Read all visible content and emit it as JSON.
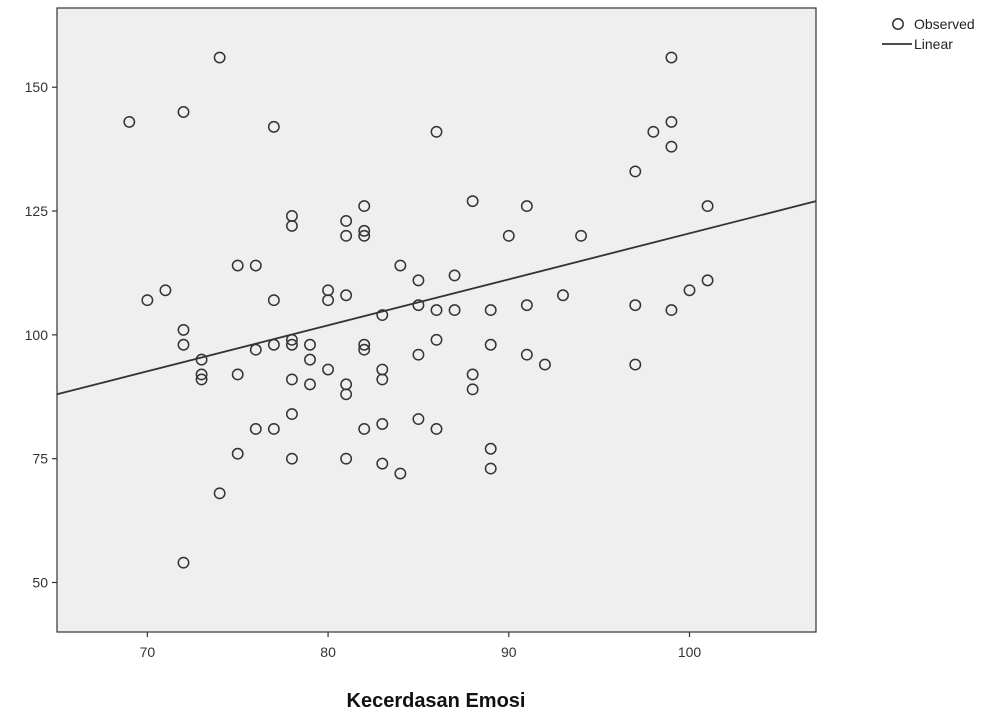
{
  "chart_data": {
    "type": "scatter",
    "xlabel": "Kecerdasan Emosi",
    "ylabel": "",
    "xlim": [
      65,
      107
    ],
    "ylim": [
      40,
      166
    ],
    "x_ticks": [
      70,
      80,
      90,
      100
    ],
    "y_ticks": [
      50,
      75,
      100,
      125,
      150
    ],
    "grid": false,
    "legend_position": "top-right",
    "legend": [
      {
        "label": "Observed",
        "marker": "circle"
      },
      {
        "label": "Linear",
        "marker": "line"
      }
    ],
    "colors": {
      "background": "#ffffff",
      "plot_area": "#efefef",
      "marker": "#333333",
      "line": "#333333"
    },
    "series": [
      {
        "name": "Observed",
        "points": [
          [
            69,
            143
          ],
          [
            70,
            107
          ],
          [
            71,
            109
          ],
          [
            72,
            145
          ],
          [
            72,
            101
          ],
          [
            72,
            98
          ],
          [
            72,
            54
          ],
          [
            73,
            95
          ],
          [
            73,
            92
          ],
          [
            73,
            91
          ],
          [
            74,
            156
          ],
          [
            74,
            68
          ],
          [
            75,
            114
          ],
          [
            75,
            92
          ],
          [
            75,
            76
          ],
          [
            76,
            114
          ],
          [
            76,
            97
          ],
          [
            76,
            81
          ],
          [
            77,
            142
          ],
          [
            77,
            107
          ],
          [
            77,
            98
          ],
          [
            77,
            81
          ],
          [
            78,
            124
          ],
          [
            78,
            122
          ],
          [
            78,
            99
          ],
          [
            78,
            98
          ],
          [
            78,
            91
          ],
          [
            78,
            84
          ],
          [
            78,
            75
          ],
          [
            79,
            98
          ],
          [
            79,
            95
          ],
          [
            79,
            90
          ],
          [
            80,
            109
          ],
          [
            80,
            107
          ],
          [
            80,
            93
          ],
          [
            81,
            123
          ],
          [
            81,
            120
          ],
          [
            81,
            108
          ],
          [
            81,
            90
          ],
          [
            81,
            88
          ],
          [
            81,
            75
          ],
          [
            82,
            126
          ],
          [
            82,
            121
          ],
          [
            82,
            120
          ],
          [
            82,
            98
          ],
          [
            82,
            97
          ],
          [
            82,
            81
          ],
          [
            83,
            104
          ],
          [
            83,
            93
          ],
          [
            83,
            91
          ],
          [
            83,
            82
          ],
          [
            83,
            74
          ],
          [
            84,
            114
          ],
          [
            84,
            72
          ],
          [
            85,
            111
          ],
          [
            85,
            106
          ],
          [
            85,
            96
          ],
          [
            85,
            83
          ],
          [
            86,
            141
          ],
          [
            86,
            105
          ],
          [
            86,
            99
          ],
          [
            86,
            81
          ],
          [
            87,
            112
          ],
          [
            87,
            105
          ],
          [
            88,
            127
          ],
          [
            88,
            92
          ],
          [
            88,
            89
          ],
          [
            89,
            105
          ],
          [
            89,
            98
          ],
          [
            89,
            77
          ],
          [
            89,
            73
          ],
          [
            90,
            120
          ],
          [
            91,
            126
          ],
          [
            91,
            106
          ],
          [
            91,
            96
          ],
          [
            92,
            94
          ],
          [
            93,
            108
          ],
          [
            94,
            120
          ],
          [
            97,
            133
          ],
          [
            97,
            106
          ],
          [
            97,
            94
          ],
          [
            98,
            141
          ],
          [
            99,
            156
          ],
          [
            99,
            143
          ],
          [
            99,
            138
          ],
          [
            99,
            105
          ],
          [
            100,
            109
          ],
          [
            101,
            126
          ],
          [
            101,
            111
          ]
        ]
      }
    ],
    "fit_line": {
      "name": "Linear",
      "x": [
        65,
        107
      ],
      "y": [
        88,
        127
      ]
    }
  }
}
